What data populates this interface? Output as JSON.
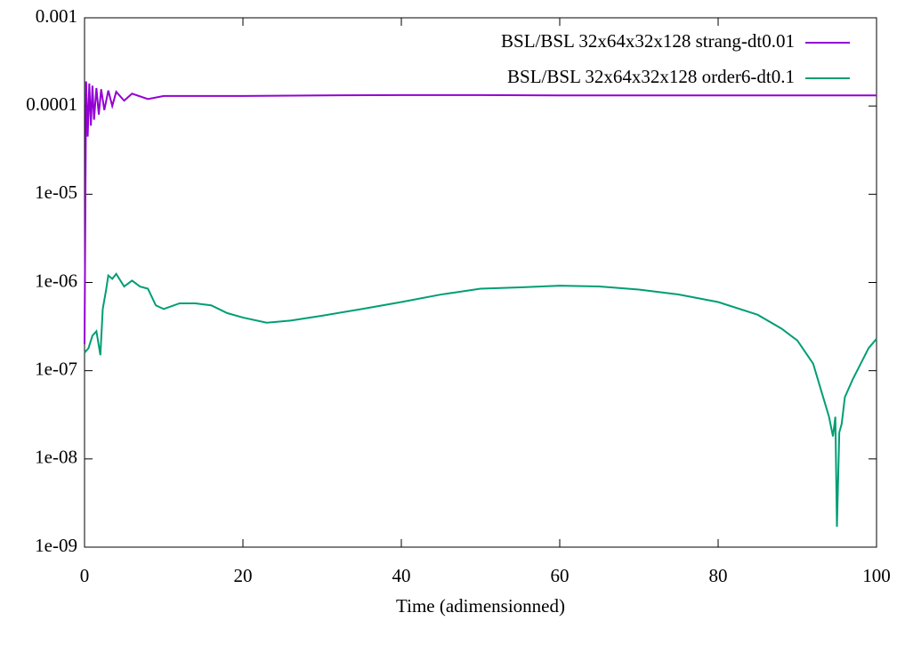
{
  "chart_data": {
    "type": "line",
    "xlabel": "Time (adimensionned)",
    "yscale": "log",
    "legend": "upper right",
    "xlim": [
      0,
      100
    ],
    "xticks": [
      0,
      20,
      40,
      60,
      80,
      100
    ],
    "ylim": [
      1e-09,
      0.001
    ],
    "yticks": [
      {
        "value": 1e-09,
        "label": "1e-09"
      },
      {
        "value": 1e-08,
        "label": "1e-08"
      },
      {
        "value": 1e-07,
        "label": "1e-07"
      },
      {
        "value": 1e-06,
        "label": "1e-06"
      },
      {
        "value": 1e-05,
        "label": "1e-05"
      },
      0.0001,
      0.001
    ],
    "series": [
      {
        "name": "BSL/BSL 32x64x32x128 strang-dt0.01",
        "color": "#9400d3",
        "x": [
          0,
          0.2,
          0.4,
          0.6,
          0.8,
          1.0,
          1.2,
          1.5,
          1.8,
          2.1,
          2.5,
          3,
          3.5,
          4,
          5,
          6,
          8,
          10,
          20,
          30,
          40,
          50,
          60,
          70,
          80,
          90,
          100
        ],
        "values": [
          2e-07,
          0.00019,
          4.5e-05,
          0.00018,
          6e-05,
          0.00017,
          7e-05,
          0.00016,
          8e-05,
          0.000155,
          9e-05,
          0.00015,
          0.0001,
          0.000145,
          0.000115,
          0.000138,
          0.00012,
          0.00013,
          0.00013,
          0.000132,
          0.000133,
          0.000133,
          0.000132,
          0.000132,
          0.000132,
          0.000132,
          0.000132
        ]
      },
      {
        "name": "BSL/BSL 32x64x32x128 order6-dt0.1",
        "color": "#009e73",
        "x": [
          0,
          0.5,
          1,
          1.5,
          2,
          2.3,
          2.7,
          3,
          3.5,
          4,
          5,
          6,
          7,
          8,
          9,
          10,
          12,
          14,
          16,
          18,
          20,
          23,
          26,
          30,
          35,
          40,
          45,
          50,
          55,
          60,
          65,
          70,
          75,
          80,
          85,
          88,
          90,
          92,
          93,
          94,
          94.5,
          94.8,
          95,
          95.3,
          95.6,
          96,
          97,
          98,
          99,
          100
        ],
        "values": [
          1.6e-07,
          1.8e-07,
          2.5e-07,
          2.8e-07,
          1.5e-07,
          5e-07,
          8e-07,
          1.2e-06,
          1.1e-06,
          1.25e-06,
          9e-07,
          1.05e-06,
          9e-07,
          8.5e-07,
          5.5e-07,
          5e-07,
          5.8e-07,
          5.8e-07,
          5.5e-07,
          4.5e-07,
          4e-07,
          3.5e-07,
          3.7e-07,
          4.2e-07,
          5e-07,
          6e-07,
          7.3e-07,
          8.5e-07,
          8.8e-07,
          9.2e-07,
          9e-07,
          8.3e-07,
          7.3e-07,
          6e-07,
          4.3e-07,
          3e-07,
          2.2e-07,
          1.2e-07,
          6e-08,
          3e-08,
          1.8e-08,
          3e-08,
          1.7e-09,
          2e-08,
          2.5e-08,
          5e-08,
          8e-08,
          1.2e-07,
          1.8e-07,
          2.3e-07
        ]
      }
    ]
  }
}
